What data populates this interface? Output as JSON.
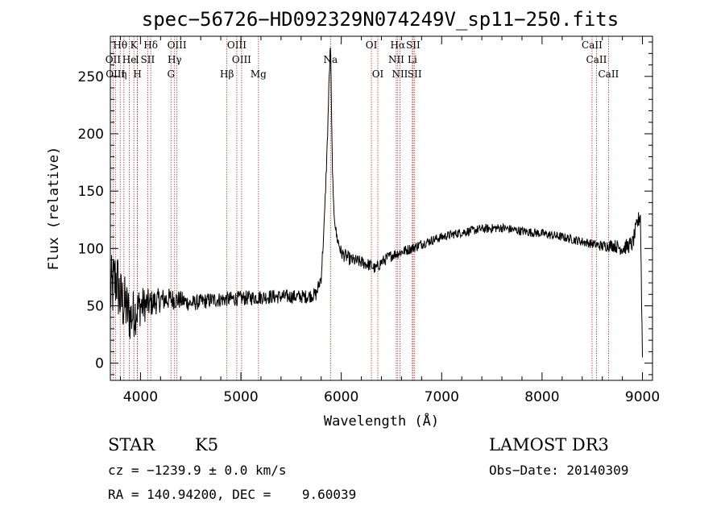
{
  "chart_data": {
    "type": "line",
    "title": "spec−56726−HD092329N074249V_sp11−250.fits",
    "xlabel": "Wavelength (Å)",
    "ylabel": "Flux (relative)",
    "xlim": [
      3700,
      9100
    ],
    "ylim": [
      -15,
      285
    ],
    "xticks": [
      4000,
      5000,
      6000,
      7000,
      8000,
      9000
    ],
    "yticks": [
      0,
      50,
      100,
      150,
      200,
      250
    ],
    "spectral_lines": [
      {
        "label": "Hθ",
        "x": 3798,
        "row": 0
      },
      {
        "label": "K",
        "x": 3934,
        "row": 0
      },
      {
        "label": "Hδ",
        "x": 4102,
        "row": 0
      },
      {
        "label": "OIII",
        "x": 4363,
        "row": 0
      },
      {
        "label": "OIII",
        "x": 4959,
        "row": 0
      },
      {
        "label": "OI",
        "x": 6300,
        "row": 0
      },
      {
        "label": "Hα",
        "x": 6563,
        "row": 0
      },
      {
        "label": "SII",
        "x": 6716,
        "row": 0
      },
      {
        "label": "CaII",
        "x": 8498,
        "row": 0
      },
      {
        "label": "OII",
        "x": 3727,
        "row": 1
      },
      {
        "label": "He",
        "x": 3889,
        "row": 1
      },
      {
        "label": "I",
        "x": 3968,
        "row": 1
      },
      {
        "label": "SII",
        "x": 4072,
        "row": 1
      },
      {
        "label": "Hγ",
        "x": 4340,
        "row": 1
      },
      {
        "label": "OIII",
        "x": 5007,
        "row": 1
      },
      {
        "label": "Na",
        "x": 5893,
        "row": 1
      },
      {
        "label": "NII",
        "x": 6548,
        "row": 1
      },
      {
        "label": "Li",
        "x": 6708,
        "row": 1
      },
      {
        "label": "CaII",
        "x": 8542,
        "row": 1
      },
      {
        "label": "OIII",
        "x": 3750,
        "row": 2
      },
      {
        "label": "η",
        "x": 3835,
        "row": 2
      },
      {
        "label": "H",
        "x": 3970,
        "row": 2
      },
      {
        "label": "G",
        "x": 4304,
        "row": 2
      },
      {
        "label": "Hβ",
        "x": 4861,
        "row": 2
      },
      {
        "label": "Mg",
        "x": 5175,
        "row": 2
      },
      {
        "label": "OI",
        "x": 6364,
        "row": 2
      },
      {
        "label": "NII",
        "x": 6584,
        "row": 2
      },
      {
        "label": "SII",
        "x": 6731,
        "row": 2
      },
      {
        "label": "CaII",
        "x": 8662,
        "row": 2
      }
    ],
    "spectrum_anchors": {
      "x": [
        3700,
        3760,
        3800,
        3850,
        3900,
        3950,
        4000,
        4100,
        4200,
        4300,
        4400,
        4500,
        4700,
        4900,
        5100,
        5300,
        5500,
        5650,
        5750,
        5800,
        5830,
        5860,
        5880,
        5893,
        5905,
        5920,
        5950,
        6000,
        6100,
        6200,
        6300,
        6340,
        6400,
        6500,
        6600,
        6700,
        6800,
        7000,
        7200,
        7400,
        7600,
        7800,
        8000,
        8200,
        8400,
        8500,
        8600,
        8700,
        8800,
        8900,
        8950,
        8980,
        9000
      ],
      "y": [
        60,
        75,
        55,
        50,
        40,
        45,
        50,
        52,
        55,
        56,
        55,
        52,
        55,
        56,
        57,
        58,
        58,
        58,
        60,
        75,
        120,
        190,
        250,
        280,
        200,
        140,
        112,
        96,
        90,
        88,
        85,
        82,
        88,
        94,
        97,
        100,
        104,
        110,
        114,
        117,
        118,
        115,
        113,
        110,
        106,
        104,
        102,
        103,
        100,
        104,
        122,
        130,
        5
      ]
    },
    "noise_amplitude": [
      {
        "x": 3700,
        "amp": 32
      },
      {
        "x": 3900,
        "amp": 24
      },
      {
        "x": 4100,
        "amp": 12
      },
      {
        "x": 4500,
        "amp": 7
      },
      {
        "x": 5700,
        "amp": 6
      },
      {
        "x": 6000,
        "amp": 6
      },
      {
        "x": 7000,
        "amp": 4
      },
      {
        "x": 8500,
        "amp": 4
      },
      {
        "x": 9000,
        "amp": 8
      }
    ]
  },
  "info": {
    "object_class": "STAR",
    "subclass": "K5",
    "survey": "LAMOST DR3",
    "cz": "cz = −1239.9 ± 0.0 km/s",
    "obs_date": "Obs−Date: 20140309",
    "coords": "RA = 140.94200, DEC =    9.60039"
  }
}
